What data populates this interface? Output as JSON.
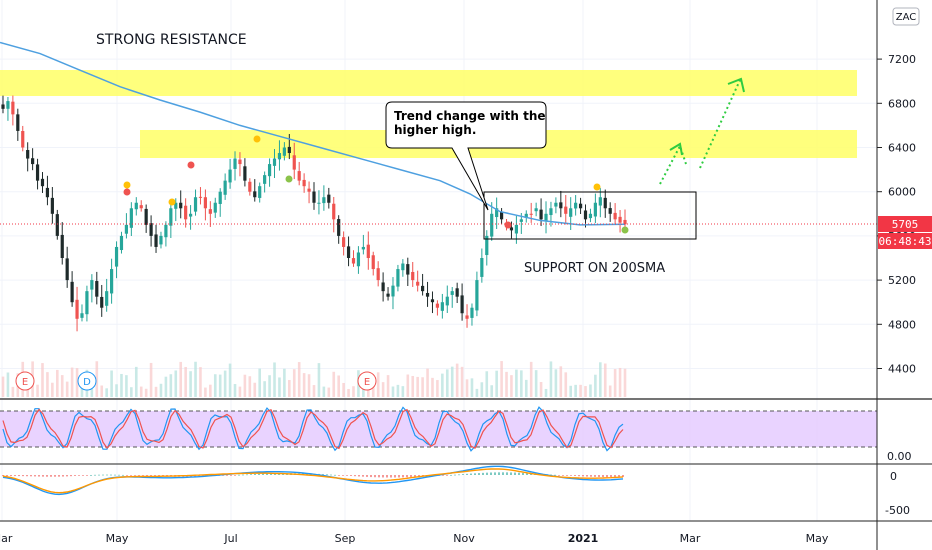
{
  "symbol": "ZAC",
  "chart_data": [
    {
      "type": "candlestick",
      "panel": "price",
      "x_ticks": [
        "Mar",
        "May",
        "Jul",
        "Sep",
        "Nov",
        "2021",
        "Mar",
        "May"
      ],
      "y_ticks": [
        4400,
        4800,
        5200,
        5600,
        6000,
        6400,
        6800,
        7200
      ],
      "y_top_partial_label": "7",
      "ylim": [
        4200,
        7400
      ],
      "last_price": "5705",
      "countdown": "06:48:43",
      "close_series": [
        6750,
        6820,
        6700,
        6550,
        6400,
        6300,
        6250,
        6100,
        6050,
        5950,
        5800,
        5600,
        5400,
        5200,
        5000,
        4850,
        4900,
        5100,
        5200,
        5050,
        4950,
        5100,
        5300,
        5500,
        5600,
        5700,
        5850,
        5900,
        5850,
        5700,
        5600,
        5500,
        5600,
        5700,
        5850,
        5900,
        5850,
        5750,
        5800,
        5950,
        5950,
        5850,
        5800,
        5900,
        6000,
        6100,
        6200,
        6300,
        6250,
        6100,
        6000,
        5950,
        6050,
        6150,
        6250,
        6300,
        6350,
        6400,
        6350,
        6200,
        6100,
        6050,
        6000,
        5900,
        5900,
        5950,
        5900,
        5750,
        5600,
        5500,
        5400,
        5350,
        5450,
        5500,
        5400,
        5300,
        5200,
        5100,
        5050,
        5150,
        5300,
        5350,
        5250,
        5200,
        5150,
        5100,
        5050,
        5000,
        4950,
        5000,
        5050,
        5100,
        5050,
        4900,
        4850,
        4950,
        5200,
        5400,
        5600,
        5800,
        5850,
        5750,
        5700,
        5650,
        5700,
        5750,
        5800,
        5800,
        5850,
        5750,
        5800,
        5850,
        5900,
        5850,
        5800,
        5850,
        5900,
        5850,
        5750,
        5800,
        5900,
        5950,
        5850,
        5800,
        5750,
        5720,
        5705
      ],
      "sma200": [
        [
          0,
          7350
        ],
        [
          40,
          7250
        ],
        [
          80,
          7100
        ],
        [
          120,
          6950
        ],
        [
          160,
          6830
        ],
        [
          200,
          6720
        ],
        [
          240,
          6600
        ],
        [
          280,
          6500
        ],
        [
          320,
          6400
        ],
        [
          360,
          6300
        ],
        [
          400,
          6200
        ],
        [
          440,
          6100
        ],
        [
          470,
          5980
        ],
        [
          500,
          5820
        ],
        [
          540,
          5740
        ],
        [
          580,
          5700
        ],
        [
          625,
          5705
        ]
      ],
      "resistance_zones": [
        [
          6850,
          7080
        ],
        [
          6300,
          6560
        ]
      ],
      "consolidation_range": [
        5560,
        5995
      ],
      "annotations": [
        "STRONG RESISTANCE",
        "SUPPORT ON 200SMA"
      ],
      "callout": [
        "Trend change with the",
        "higher high."
      ],
      "event_badges": [
        "E",
        "D",
        "E"
      ]
    },
    {
      "type": "line",
      "panel": "stochastic",
      "y_ticks": [
        "0.00"
      ],
      "band": [
        20,
        80
      ]
    },
    {
      "type": "line",
      "panel": "macd",
      "y_ticks": [
        0,
        -500
      ]
    }
  ],
  "colors": {
    "up": "#26a69a",
    "down": "#ef5350",
    "candle_dark": "#1e2a2a",
    "sma": "#4ea0e0",
    "zone": "#ffff66",
    "stoch_band": "#e3c8ff",
    "price_tag": "#f23645",
    "arrow": "#2ecc40"
  }
}
